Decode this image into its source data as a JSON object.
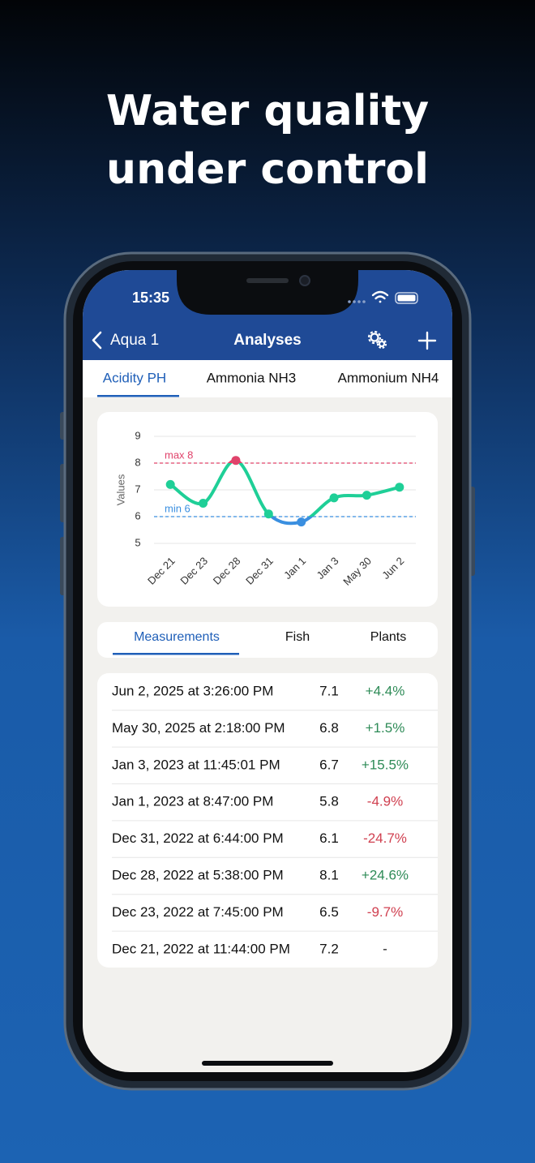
{
  "headline": [
    "Water quality",
    "under control"
  ],
  "status_bar": {
    "time": "15:35"
  },
  "nav": {
    "back": "Aqua 1",
    "title": "Analyses"
  },
  "tabs": {
    "items": [
      "Acidity PH",
      "Ammonia NH3",
      "Ammonium NH4"
    ],
    "active": 0
  },
  "chart_data": {
    "type": "line",
    "categories": [
      "Dec 21",
      "Dec 23",
      "Dec 28",
      "Dec 31",
      "Jan 1",
      "Jan 3",
      "May 30",
      "Jun 2"
    ],
    "values": [
      7.2,
      6.5,
      8.1,
      6.1,
      5.8,
      6.7,
      6.8,
      7.1
    ],
    "color": "#1fcf97",
    "ylabel": "Values",
    "ylim": [
      5,
      9
    ],
    "yticks": [
      5,
      6,
      7,
      8,
      9
    ],
    "grid": true,
    "thresholds": [
      {
        "value": 8,
        "label": "max 8",
        "color": "#e0436b"
      },
      {
        "value": 6,
        "label": "min 6",
        "color": "#3a8fe0"
      }
    ]
  },
  "segments": {
    "items": [
      "Measurements",
      "Fish",
      "Plants"
    ],
    "active": 0
  },
  "measurements": [
    [
      "Jun 2, 2025 at 3:26:00 PM",
      7.1,
      "+4.4%"
    ],
    [
      "May 30, 2025 at 2:18:00 PM",
      6.8,
      "+1.5%"
    ],
    [
      "Jan 3, 2023 at 11:45:01 PM",
      6.7,
      "+15.5%"
    ],
    [
      "Jan 1, 2023 at 8:47:00 PM",
      5.8,
      "-4.9%"
    ],
    [
      "Dec 31, 2022 at 6:44:00 PM",
      6.1,
      "-24.7%"
    ],
    [
      "Dec 28, 2022 at 5:38:00 PM",
      8.1,
      "+24.6%"
    ],
    [
      "Dec 23, 2022 at 7:45:00 PM",
      6.5,
      "-9.7%"
    ],
    [
      "Dec 21, 2022 at 11:44:00 PM",
      7.2,
      "-"
    ]
  ]
}
